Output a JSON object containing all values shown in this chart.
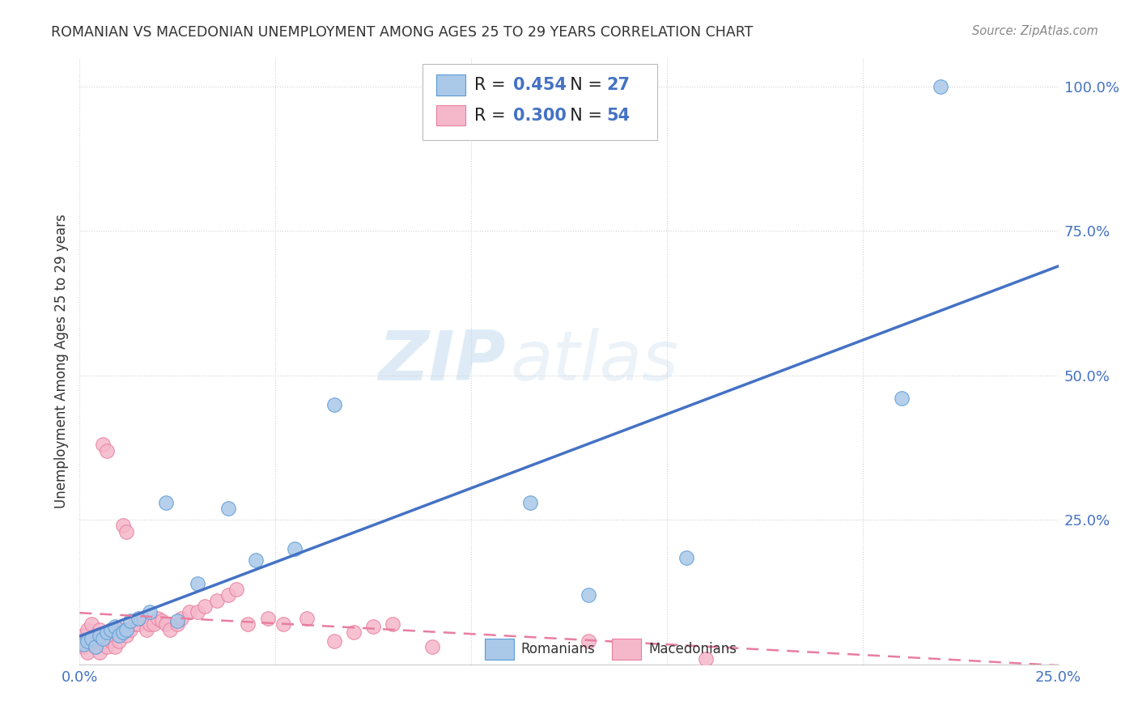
{
  "title": "ROMANIAN VS MACEDONIAN UNEMPLOYMENT AMONG AGES 25 TO 29 YEARS CORRELATION CHART",
  "source": "Source: ZipAtlas.com",
  "ylabel": "Unemployment Among Ages 25 to 29 years",
  "xlim": [
    0.0,
    0.25
  ],
  "ylim": [
    0.0,
    1.05
  ],
  "xticks": [
    0.0,
    0.05,
    0.1,
    0.15,
    0.2,
    0.25
  ],
  "yticks": [
    0.0,
    0.25,
    0.5,
    0.75,
    1.0
  ],
  "xtick_labels": [
    "0.0%",
    "",
    "",
    "",
    "",
    "25.0%"
  ],
  "ytick_labels": [
    "",
    "25.0%",
    "50.0%",
    "75.0%",
    "100.0%"
  ],
  "romanian_color": "#aac8e8",
  "macedonian_color": "#f5b8cb",
  "romanian_edge_color": "#5b9bd5",
  "macedonian_edge_color": "#e87da0",
  "romanian_line_color": "#4472c4",
  "macedonian_line_color": "#d9687a",
  "r_romanian": 0.454,
  "n_romanian": 27,
  "r_macedonian": 0.3,
  "n_macedonian": 54,
  "legend_label_romanian": "Romanians",
  "legend_label_macedonian": "Macedonians",
  "watermark_zip": "ZIP",
  "watermark_atlas": "atlas",
  "romanian_x": [
    0.001,
    0.002,
    0.003,
    0.004,
    0.005,
    0.006,
    0.007,
    0.008,
    0.009,
    0.01,
    0.011,
    0.012,
    0.013,
    0.015,
    0.018,
    0.022,
    0.025,
    0.03,
    0.038,
    0.045,
    0.055,
    0.065,
    0.13,
    0.155,
    0.115,
    0.21,
    0.22
  ],
  "romanian_y": [
    0.035,
    0.04,
    0.045,
    0.03,
    0.05,
    0.045,
    0.055,
    0.06,
    0.065,
    0.05,
    0.055,
    0.06,
    0.075,
    0.08,
    0.09,
    0.28,
    0.075,
    0.14,
    0.27,
    0.18,
    0.2,
    0.45,
    0.12,
    0.185,
    0.28,
    0.46,
    1.0
  ],
  "macedonian_x": [
    0.001,
    0.001,
    0.002,
    0.002,
    0.003,
    0.003,
    0.004,
    0.004,
    0.005,
    0.005,
    0.006,
    0.006,
    0.007,
    0.007,
    0.008,
    0.008,
    0.009,
    0.009,
    0.01,
    0.01,
    0.011,
    0.011,
    0.012,
    0.012,
    0.013,
    0.014,
    0.015,
    0.016,
    0.017,
    0.018,
    0.019,
    0.02,
    0.021,
    0.022,
    0.023,
    0.025,
    0.026,
    0.028,
    0.03,
    0.032,
    0.035,
    0.038,
    0.04,
    0.043,
    0.048,
    0.052,
    0.058,
    0.065,
    0.07,
    0.075,
    0.08,
    0.09,
    0.13,
    0.16
  ],
  "macedonian_y": [
    0.03,
    0.05,
    0.02,
    0.06,
    0.04,
    0.07,
    0.03,
    0.05,
    0.02,
    0.06,
    0.04,
    0.38,
    0.03,
    0.37,
    0.05,
    0.04,
    0.06,
    0.03,
    0.05,
    0.04,
    0.06,
    0.24,
    0.05,
    0.23,
    0.06,
    0.07,
    0.07,
    0.08,
    0.06,
    0.07,
    0.07,
    0.08,
    0.075,
    0.07,
    0.06,
    0.07,
    0.08,
    0.09,
    0.09,
    0.1,
    0.11,
    0.12,
    0.13,
    0.07,
    0.08,
    0.07,
    0.08,
    0.04,
    0.055,
    0.065,
    0.07,
    0.03,
    0.04,
    0.01
  ]
}
